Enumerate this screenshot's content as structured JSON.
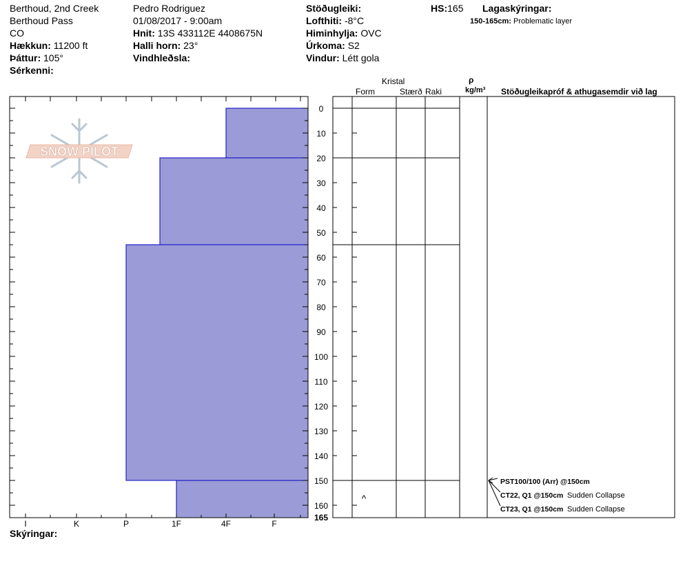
{
  "header": {
    "location1": "Berthoud, 2nd Creek",
    "location2": "Berthoud Pass",
    "state": "CO",
    "elevation_label": "Hækkun:",
    "elevation": "11200 ft",
    "aspect_label": "Þáttur:",
    "aspect": "105°",
    "features_label": "Sérkenni:",
    "observer": "Pedro Rodriguez",
    "datetime": "01/08/2017 - 9:00am",
    "coords_label": "Hnit:",
    "coords": "13S 433112E 4408675N",
    "slope_label": "Halli horn:",
    "slope": "23°",
    "wind_loading_label": "Vindhleðsla:",
    "stability_label": "Stöðugleiki:",
    "air_temp_label": "Lofthiti:",
    "air_temp": "-8°C",
    "sky_label": "Himinhylja:",
    "sky": "OVC",
    "precip_label": "Úrkoma:",
    "precip": "S2",
    "wind_label": "Vindur:",
    "wind": "Létt gola",
    "hs_label": "HS:",
    "hs": "165",
    "layer_notes_label": "Lagaskýringar:",
    "layer_note_range": "150-165cm:",
    "layer_note_text": "Problematic layer"
  },
  "logo_text": "SNOW PILOT",
  "columns": {
    "crystal": "Kristal",
    "form": "Form",
    "size": "Stærð",
    "moisture": "Raki",
    "rho": "ρ",
    "density_unit": "kg/m³",
    "tests": "Stöðugleikapróf & athugasemdir við lag"
  },
  "footer": {
    "notes_label": "Skýringar:"
  },
  "colors": {
    "layer_fill": "#9b9bd7",
    "layer_stroke": "#0000c0"
  },
  "chart_data": {
    "type": "bar",
    "orientation": "horizontal",
    "y_axis": {
      "label": "",
      "range": [
        0,
        165
      ],
      "ticks": [
        0,
        10,
        20,
        30,
        40,
        50,
        60,
        70,
        80,
        90,
        100,
        110,
        120,
        130,
        140,
        150,
        160
      ],
      "end_tick": 165,
      "reversed": true
    },
    "x_axis": {
      "labels": [
        "I",
        "K",
        "P",
        "1F",
        "4F",
        "F"
      ],
      "hardness_scale": [
        "F",
        "4F",
        "1F",
        "P",
        "K",
        "I"
      ]
    },
    "layers": [
      {
        "top": 0,
        "bottom": 20,
        "hardness": "4F"
      },
      {
        "top": 20,
        "bottom": 55,
        "hardness": "1F-"
      },
      {
        "top": 55,
        "bottom": 150,
        "hardness": "P"
      },
      {
        "top": 150,
        "bottom": 165,
        "hardness": "1F"
      }
    ],
    "layer_boundaries": [
      0,
      20,
      55,
      150
    ],
    "grain_symbols": [
      {
        "depth": 157,
        "symbol": "^"
      }
    ],
    "tests": [
      {
        "depth": 150,
        "result": "PST100/100 (Arr) @150cm",
        "comment": ""
      },
      {
        "depth": 150,
        "result": "CT22, Q1 @150cm",
        "comment": "Sudden Collapse"
      },
      {
        "depth": 150,
        "result": "CT23, Q1 @150cm",
        "comment": "Sudden Collapse"
      }
    ]
  }
}
